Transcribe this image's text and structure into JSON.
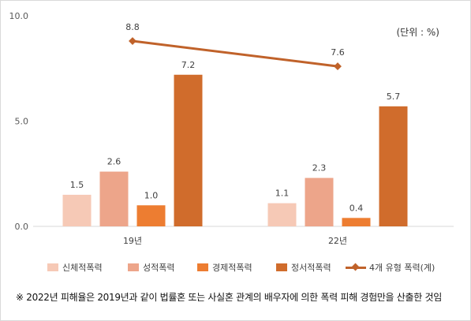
{
  "unit_label": "(단위 : %)",
  "footnote": "※ 2022년 피해율은 2019년과 같이 법률혼 또는 사실혼 관계의 배우자에 의한 폭력 피해 경험만을 산출한 것임",
  "chart_data": {
    "type": "bar",
    "title": "",
    "xlabel": "",
    "ylabel": "",
    "ylim": [
      0,
      10
    ],
    "yticks": [
      "0.0",
      "5.0",
      "10.0"
    ],
    "grid": false,
    "legend_position": "bottom",
    "categories": [
      "19년",
      "22년"
    ],
    "series": [
      {
        "name": "신체적폭력",
        "values": [
          1.5,
          1.1
        ],
        "labels": [
          "1.5",
          "1.1"
        ],
        "color": "#f6c9b6"
      },
      {
        "name": "성적폭력",
        "values": [
          2.6,
          2.3
        ],
        "labels": [
          "2.6",
          "2.3"
        ],
        "color": "#eda58a"
      },
      {
        "name": "경제적폭력",
        "values": [
          1.0,
          0.4
        ],
        "labels": [
          "1.0",
          "0.4"
        ],
        "color": "#ed7d31"
      },
      {
        "name": "정서적폭력",
        "values": [
          7.2,
          5.7
        ],
        "labels": [
          "7.2",
          "5.7"
        ],
        "color": "#d06c2c"
      }
    ],
    "line_series": {
      "name": "4개 유형 폭력(계)",
      "values": [
        8.8,
        7.6
      ],
      "labels": [
        "8.8",
        "7.6"
      ],
      "color": "#c0622a"
    }
  }
}
